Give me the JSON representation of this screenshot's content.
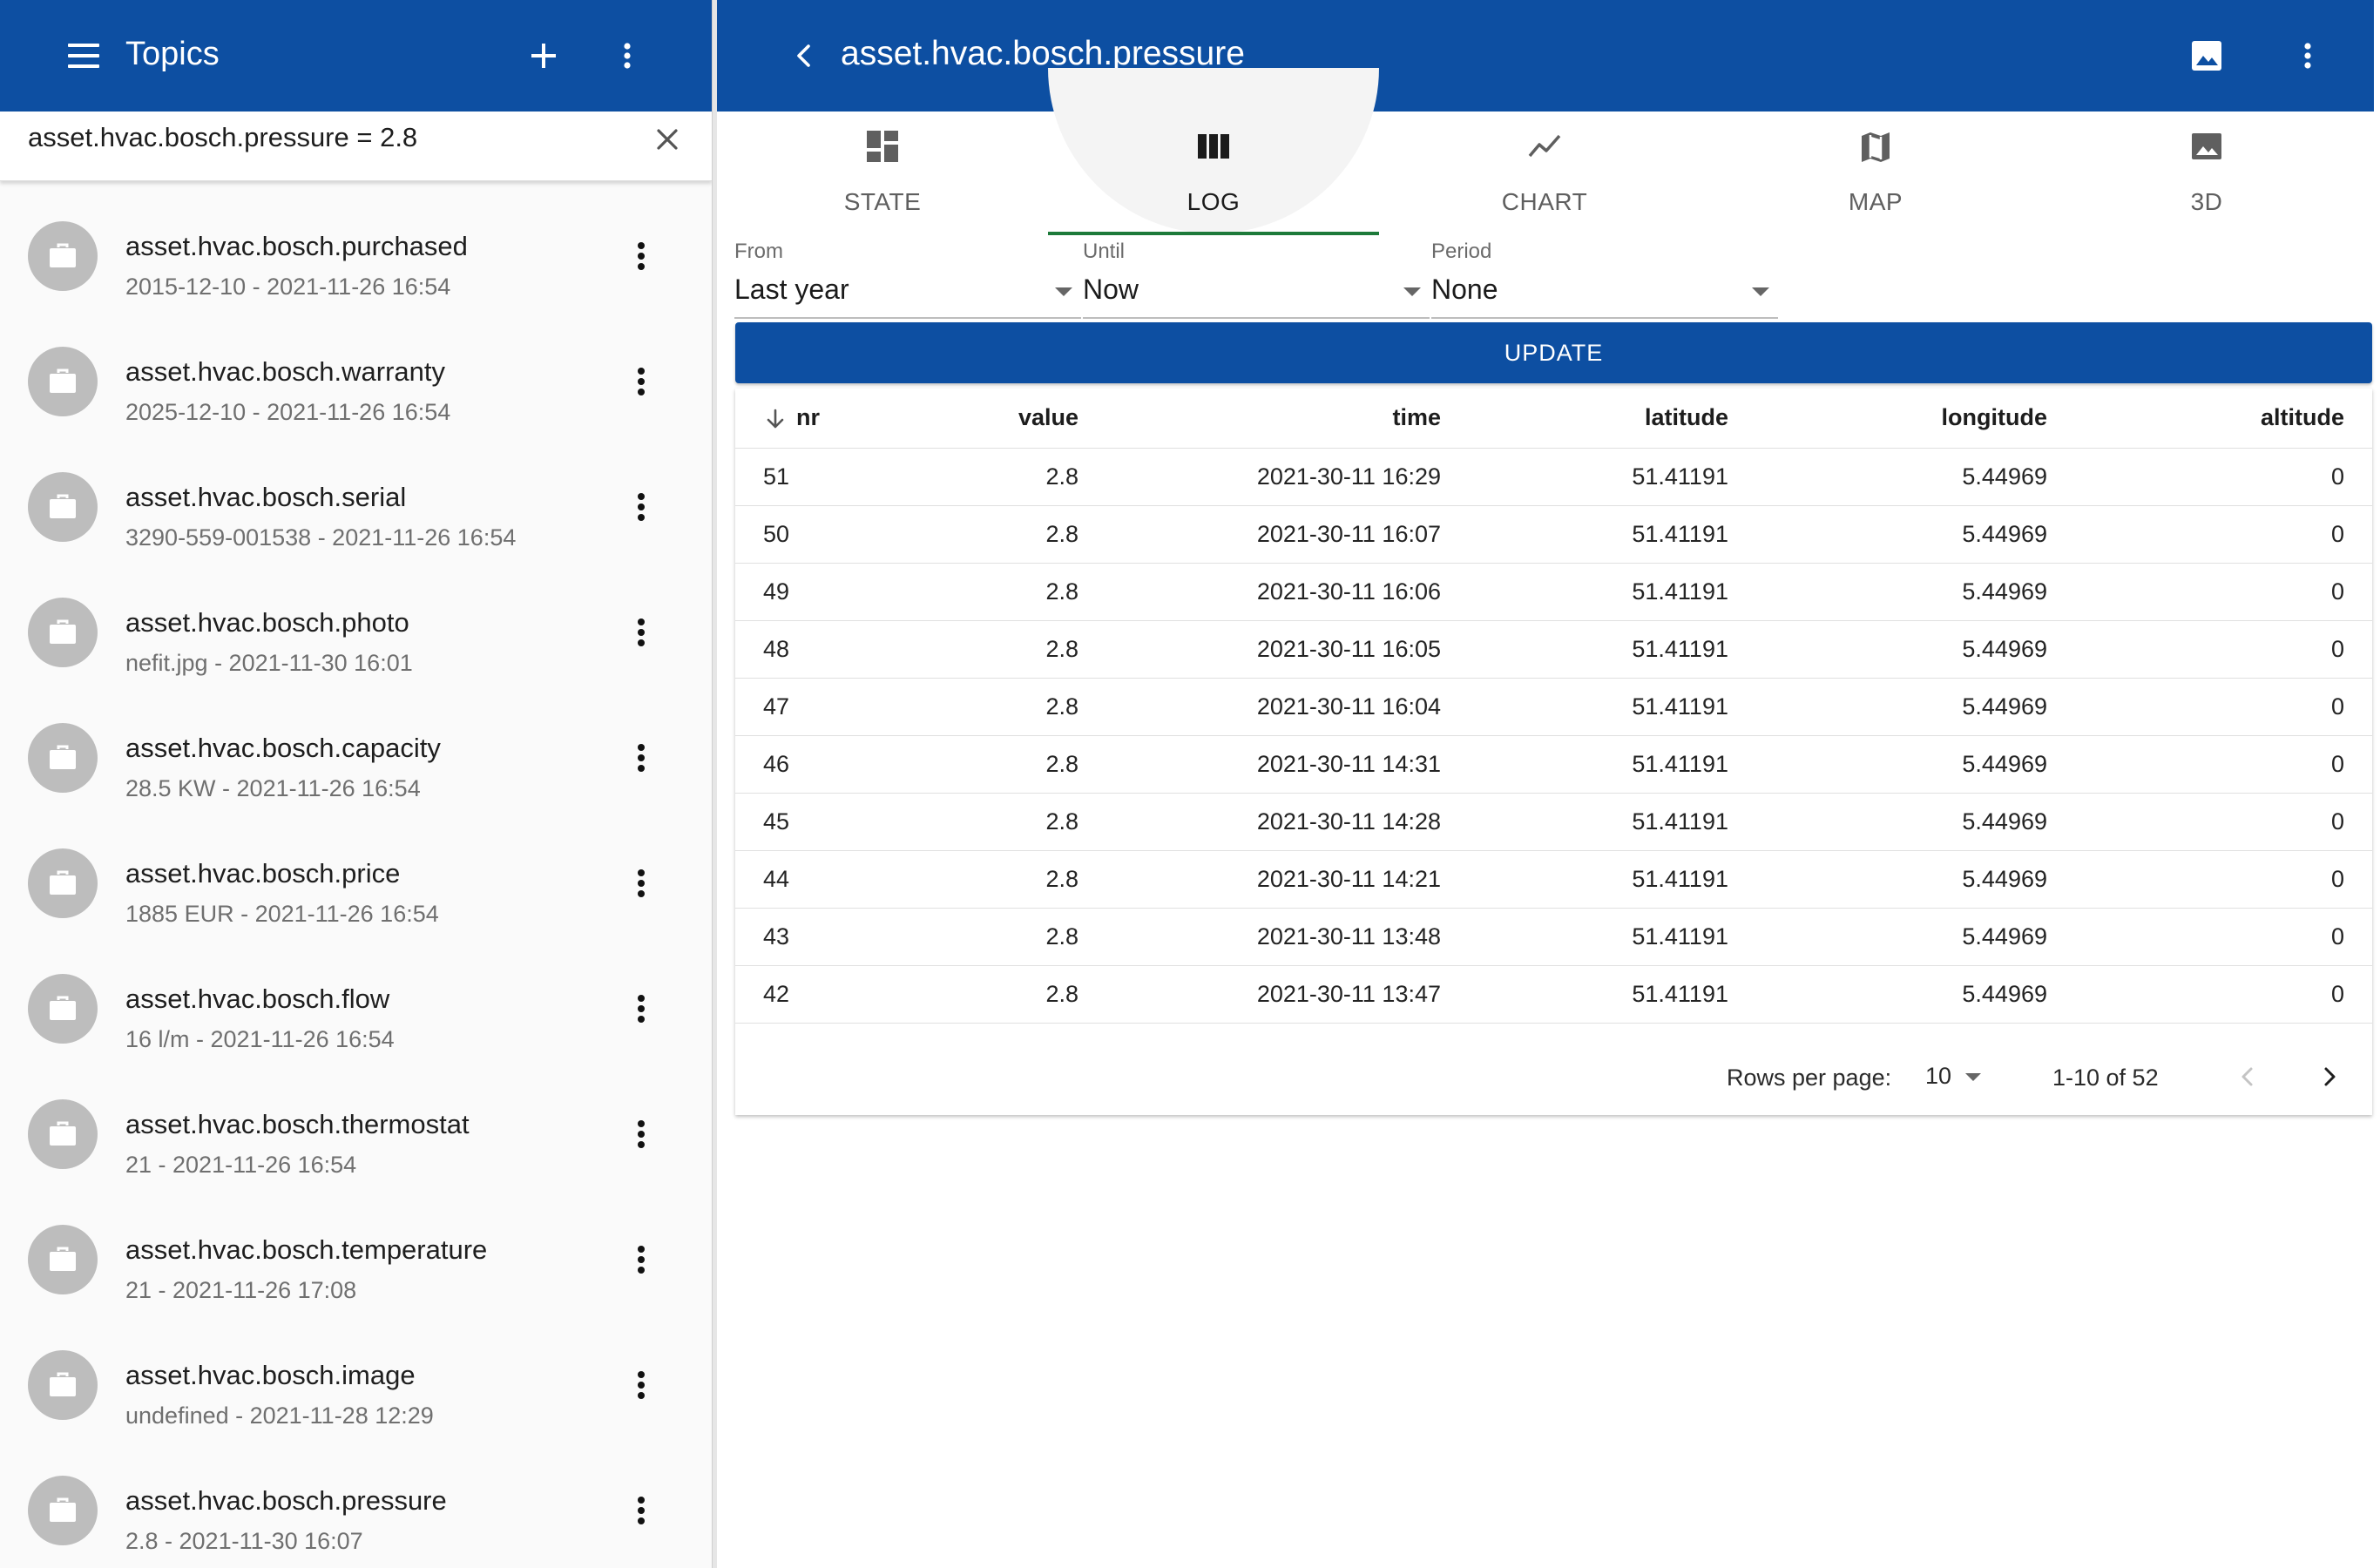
{
  "left_panel": {
    "title": "Topics",
    "search": {
      "value": "asset.hvac.bosch.pressure = 2.8"
    },
    "topics": [
      {
        "name": "asset.hvac.bosch.purchased",
        "sub": "2015-12-10 - 2021-11-26 16:54"
      },
      {
        "name": "asset.hvac.bosch.warranty",
        "sub": "2025-12-10 - 2021-11-26 16:54"
      },
      {
        "name": "asset.hvac.bosch.serial",
        "sub": "3290-559-001538 - 2021-11-26 16:54"
      },
      {
        "name": "asset.hvac.bosch.photo",
        "sub": "nefit.jpg - 2021-11-30 16:01"
      },
      {
        "name": "asset.hvac.bosch.capacity",
        "sub": "28.5 KW - 2021-11-26 16:54"
      },
      {
        "name": "asset.hvac.bosch.price",
        "sub": "1885 EUR - 2021-11-26 16:54"
      },
      {
        "name": "asset.hvac.bosch.flow",
        "sub": "16 l/m - 2021-11-26 16:54"
      },
      {
        "name": "asset.hvac.bosch.thermostat",
        "sub": "21 - 2021-11-26 16:54"
      },
      {
        "name": "asset.hvac.bosch.temperature",
        "sub": "21 - 2021-11-26 17:08"
      },
      {
        "name": "asset.hvac.bosch.image",
        "sub": "undefined - 2021-11-28 12:29"
      },
      {
        "name": "asset.hvac.bosch.pressure",
        "sub": "2.8 - 2021-11-30 16:07"
      }
    ]
  },
  "right_panel": {
    "title": "asset.hvac.bosch.pressure",
    "tabs": [
      {
        "label": "STATE",
        "icon": "dashboard-icon"
      },
      {
        "label": "LOG",
        "icon": "view-column-icon",
        "active": true
      },
      {
        "label": "CHART",
        "icon": "show-chart-icon"
      },
      {
        "label": "MAP",
        "icon": "map-icon"
      },
      {
        "label": "3D",
        "icon": "image-icon"
      }
    ],
    "filters": {
      "from": {
        "label": "From",
        "value": "Last year"
      },
      "until": {
        "label": "Until",
        "value": "Now"
      },
      "period": {
        "label": "Period",
        "value": "None"
      }
    },
    "update_label": "UPDATE",
    "table": {
      "columns": [
        "nr",
        "value",
        "time",
        "latitude",
        "longitude",
        "altitude"
      ],
      "rows": [
        [
          "51",
          "2.8",
          "2021-30-11 16:29",
          "51.41191",
          "5.44969",
          "0"
        ],
        [
          "50",
          "2.8",
          "2021-30-11 16:07",
          "51.41191",
          "5.44969",
          "0"
        ],
        [
          "49",
          "2.8",
          "2021-30-11 16:06",
          "51.41191",
          "5.44969",
          "0"
        ],
        [
          "48",
          "2.8",
          "2021-30-11 16:05",
          "51.41191",
          "5.44969",
          "0"
        ],
        [
          "47",
          "2.8",
          "2021-30-11 16:04",
          "51.41191",
          "5.44969",
          "0"
        ],
        [
          "46",
          "2.8",
          "2021-30-11 14:31",
          "51.41191",
          "5.44969",
          "0"
        ],
        [
          "45",
          "2.8",
          "2021-30-11 14:28",
          "51.41191",
          "5.44969",
          "0"
        ],
        [
          "44",
          "2.8",
          "2021-30-11 14:21",
          "51.41191",
          "5.44969",
          "0"
        ],
        [
          "43",
          "2.8",
          "2021-30-11 13:48",
          "51.41191",
          "5.44969",
          "0"
        ],
        [
          "42",
          "2.8",
          "2021-30-11 13:47",
          "51.41191",
          "5.44969",
          "0"
        ]
      ]
    },
    "pagination": {
      "rows_per_page_label": "Rows per page:",
      "rows_per_page": "10",
      "range": "1-10 of 52"
    }
  },
  "colors": {
    "appbar": "#0d4fa2",
    "active_tab_underline": "#1d7a3a",
    "avatar": "#bdbdbd"
  }
}
